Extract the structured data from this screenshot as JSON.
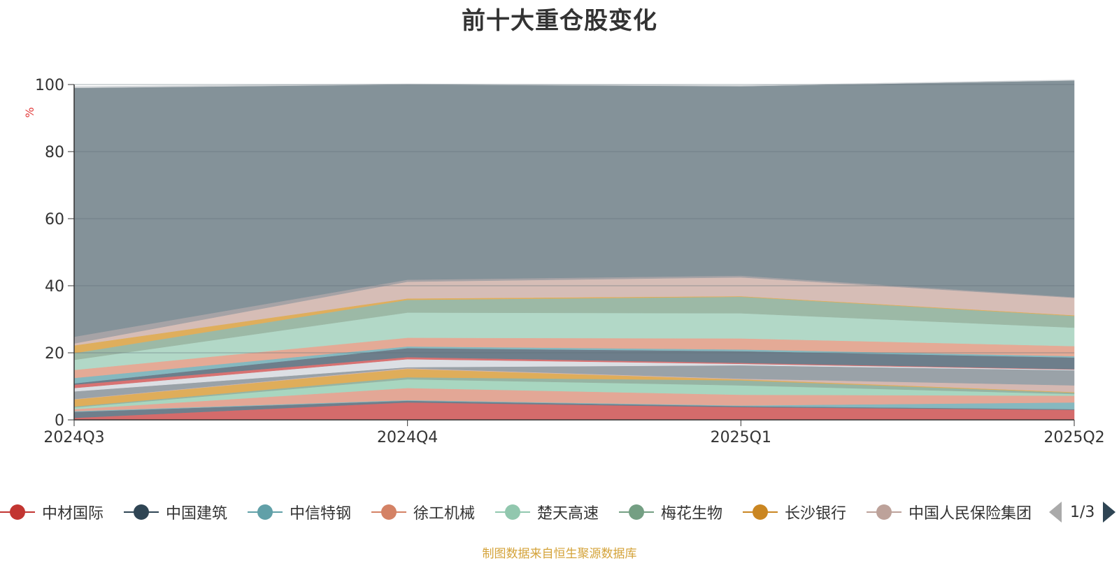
{
  "chart_data": {
    "type": "area",
    "title": "前十大重仓股变化",
    "ylabel": "%",
    "ylim": [
      0,
      100
    ],
    "yticks": [
      0,
      20,
      40,
      60,
      80,
      100
    ],
    "categories": [
      "2024Q3",
      "2024Q4",
      "2025Q1",
      "2025Q2"
    ],
    "stacked": true,
    "grid": true,
    "legend_position": "bottom",
    "legend_page": "1/3",
    "series": [
      {
        "name": "中材国际",
        "color": "#d46b6b",
        "values": [
          0.6,
          5.2,
          3.8,
          3.0
        ]
      },
      {
        "name": "中国建筑",
        "color": "#6f7f8c",
        "values": [
          1.8,
          0.5,
          0.3,
          0.2
        ]
      },
      {
        "name": "中信特钢",
        "color": "#86b8bf",
        "values": [
          0.2,
          0.2,
          0.2,
          2.0
        ]
      },
      {
        "name": "徐工机械",
        "color": "#e3a796",
        "values": [
          0.6,
          3.6,
          3.2,
          2.0
        ]
      },
      {
        "name": "楚天高速",
        "color": "#a8d6c0",
        "values": [
          0.5,
          2.6,
          2.8,
          0.5
        ]
      },
      {
        "name": "梅花生物",
        "color": "#96b4a3",
        "values": [
          0.3,
          0.6,
          1.5,
          0.4
        ]
      },
      {
        "name": "长沙银行",
        "color": "#dfad5a",
        "values": [
          2.1,
          2.5,
          0.3,
          0.2
        ]
      },
      {
        "name": "中国人民保险集团",
        "color": "#d4b8b2",
        "values": [
          0.1,
          0.2,
          0.2,
          2.0
        ]
      },
      {
        "values": [
          2.3,
          0.3,
          4.0,
          4.5
        ],
        "color": "#9aa2a8"
      },
      {
        "values": [
          1.0,
          2.4,
          0.4,
          0.2
        ],
        "color": "#dcdfe4"
      },
      {
        "values": [
          1.0,
          0.6,
          0.3,
          0.1
        ],
        "color": "#d87272"
      },
      {
        "values": [
          0.4,
          2.7,
          3.5,
          3.5
        ],
        "color": "#6d7e8b"
      },
      {
        "values": [
          1.6,
          0.5,
          0.5,
          0.4
        ],
        "color": "#85b8bf"
      },
      {
        "values": [
          2.4,
          2.6,
          3.3,
          3.0
        ],
        "color": "#e4aa96"
      },
      {
        "values": [
          3.0,
          7.5,
          7.5,
          5.5
        ],
        "color": "#b2d8c7"
      },
      {
        "values": [
          2.0,
          3.8,
          4.9,
          3.5
        ],
        "color": "#9cb9a6"
      },
      {
        "values": [
          2.3,
          0.4,
          0.2,
          0.2
        ],
        "color": "#dfae5c"
      },
      {
        "values": [
          0.6,
          5.0,
          5.6,
          5.2
        ],
        "color": "#d6bdb6"
      },
      {
        "values": [
          2.0,
          0.6,
          0.5,
          0.2
        ],
        "color": "#a6a3a6"
      },
      {
        "values": [
          74.2,
          58.2,
          56.5,
          64.6
        ],
        "color": "#849299"
      },
      {
        "values": [
          0.4,
          0.2,
          0.2,
          0.2
        ],
        "color": "#cfd3d6"
      }
    ]
  },
  "source": "制图数据来自恒生聚源数据库"
}
